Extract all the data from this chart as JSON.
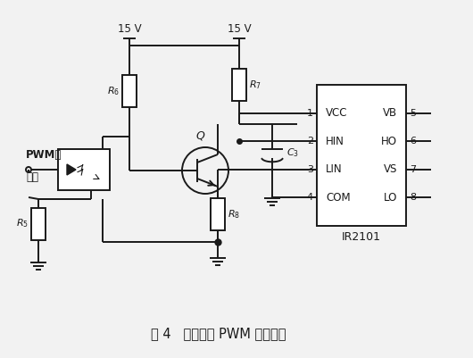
{
  "title": "图 4   采样电路 PWM 驱动电路",
  "bg_color": "#f2f2f2",
  "line_color": "#1a1a1a",
  "fig_width": 5.3,
  "fig_height": 4.01,
  "dpi": 100,
  "IC_pins_left": [
    "VCC",
    "HIN",
    "LIN",
    "COM"
  ],
  "IC_pins_right": [
    "VB",
    "HO",
    "VS",
    "LO"
  ],
  "IC_nums_left": [
    "1",
    "2",
    "3",
    "4"
  ],
  "IC_nums_right": [
    "5",
    "6",
    "7",
    "8"
  ],
  "IC_label": "IR2101",
  "label_R5": "$R_5$",
  "label_R6": "$R_6$",
  "label_R7": "$R_7$",
  "label_R8": "$R_8$",
  "label_C3": "$C_3$",
  "label_Q": "$Q$",
  "label_15V": "15 V",
  "label_PWM1": "PWM波",
  "label_PWM2": "输入"
}
